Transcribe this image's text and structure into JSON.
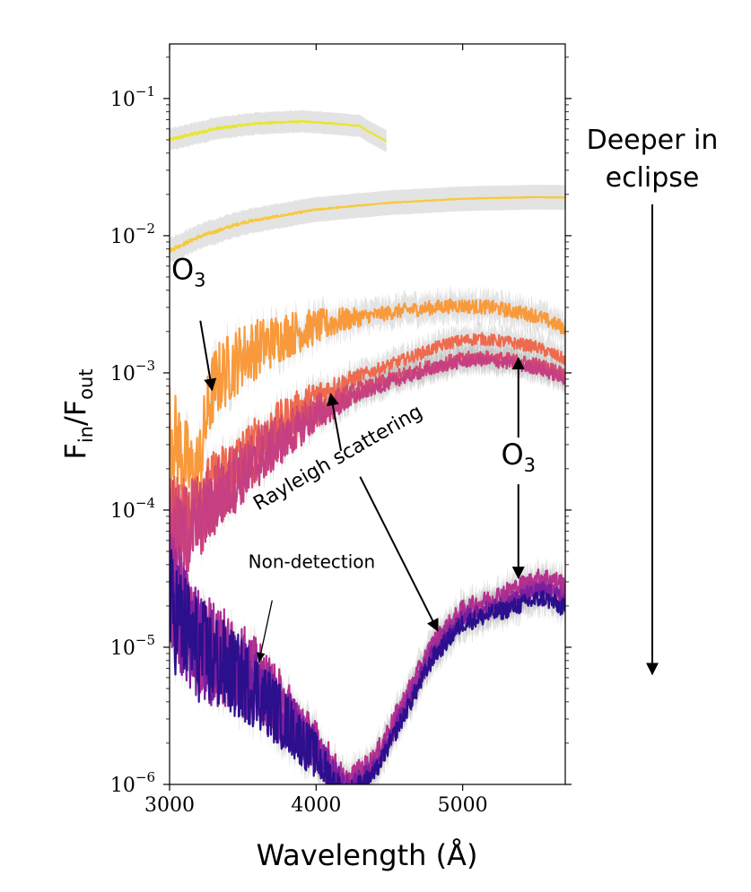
{
  "chart_data": {
    "type": "line",
    "title": "",
    "xlabel": "Wavelength (Å)",
    "ylabel": {
      "base": "F",
      "num_sub": "in",
      "sep": "/",
      "den": "F",
      "den_sub": "out"
    },
    "xlim": [
      3000,
      5700
    ],
    "ylim": [
      1e-06,
      0.25
    ],
    "yscale": "log",
    "grid": false,
    "legend": "none",
    "xticks": [
      {
        "value": 3000,
        "label": "3000"
      },
      {
        "value": 4000,
        "label": "4000"
      },
      {
        "value": 5000,
        "label": "5000"
      }
    ],
    "yticks": [
      {
        "value": 1e-06,
        "base": "10",
        "exp": "−6"
      },
      {
        "value": 1e-05,
        "base": "10",
        "exp": "−5"
      },
      {
        "value": 0.0001,
        "base": "10",
        "exp": "−4"
      },
      {
        "value": 0.001,
        "base": "10",
        "exp": "−3"
      },
      {
        "value": 0.01,
        "base": "10",
        "exp": "−2"
      },
      {
        "value": 0.1,
        "base": "10",
        "exp": "−1"
      }
    ],
    "series": [
      {
        "color": "#e8e62a",
        "noise": 0.012,
        "band": 0.08,
        "x": [
          3000,
          3300,
          3600,
          3900,
          4100,
          4300,
          4350,
          4480
        ],
        "y": [
          0.05,
          0.06,
          0.066,
          0.068,
          0.066,
          0.063,
          0.058,
          0.049
        ]
      },
      {
        "color": "#f7c93a",
        "noise": 0.015,
        "band": 0.09,
        "x": [
          3000,
          3200,
          3500,
          4000,
          4500,
          5000,
          5500,
          5700
        ],
        "y": [
          0.0078,
          0.0098,
          0.0125,
          0.0155,
          0.0174,
          0.0186,
          0.0191,
          0.019
        ]
      },
      {
        "color": "#f89a3c",
        "noise": 0.35,
        "band": 0.1,
        "x": [
          3000,
          3080,
          3150,
          3200,
          3250,
          3300,
          3350,
          3500,
          3800,
          4200,
          4600,
          4950,
          5200,
          5500,
          5700
        ],
        "y": [
          0.0004,
          0.00027,
          0.00018,
          0.0002,
          0.00045,
          0.0008,
          0.00095,
          0.00135,
          0.0019,
          0.00245,
          0.00285,
          0.0031,
          0.003,
          0.00262,
          0.0021
        ]
      },
      {
        "color": "#ee6a4f",
        "noise": 0.3,
        "band": 0.09,
        "x": [
          3000,
          3100,
          3200,
          3400,
          3600,
          3800,
          4000,
          4300,
          4600,
          4900,
          5100,
          5300,
          5500,
          5700
        ],
        "y": [
          0.0001,
          9e-05,
          0.00012,
          0.0002,
          0.00032,
          0.00048,
          0.00068,
          0.00095,
          0.00125,
          0.00165,
          0.00178,
          0.00168,
          0.00155,
          0.00125
        ]
      },
      {
        "color": "#d44a6e",
        "noise": 0.35,
        "band": 0.09,
        "x": [
          3000,
          3100,
          3200,
          3400,
          3600,
          3800,
          4000,
          4300,
          4600,
          4900,
          5100,
          5300,
          5500,
          5700
        ],
        "y": [
          8e-05,
          7e-05,
          9e-05,
          0.00016,
          0.00025,
          0.00036,
          0.00052,
          0.00075,
          0.00098,
          0.0012,
          0.0013,
          0.00125,
          0.00115,
          0.00098
        ]
      },
      {
        "color": "#c63f82",
        "noise": 0.3,
        "band": 0.08,
        "x": [
          3000,
          3100,
          3200,
          3400,
          3600,
          3800,
          4000,
          4300,
          4600,
          4900,
          5100,
          5300,
          5500,
          5700
        ],
        "y": [
          7e-05,
          6e-05,
          8e-05,
          0.00014,
          0.00022,
          0.00033,
          0.00048,
          0.0007,
          0.00092,
          0.00115,
          0.00125,
          0.00118,
          0.00108,
          0.0009
        ]
      },
      {
        "color": "#b5308f",
        "noise": 0.45,
        "band": 0.1,
        "x": [
          3000,
          3200,
          3400,
          3600,
          3800,
          4000,
          4100,
          4200,
          4400,
          4600,
          4800,
          5000,
          5200,
          5400,
          5550,
          5700
        ],
        "y": [
          3e-05,
          1.2e-05,
          8.5e-06,
          6e-06,
          3.5e-06,
          2e-06,
          1.4e-06,
          1e-06,
          1.6e-06,
          4.2e-06,
          1.1e-05,
          1.9e-05,
          2.3e-05,
          2.85e-05,
          3.3e-05,
          2.9e-05
        ]
      },
      {
        "color": "#a32d96",
        "noise": 0.45,
        "band": 0.1,
        "x": [
          3000,
          3200,
          3400,
          3600,
          3800,
          4000,
          4100,
          4200,
          4400,
          4600,
          4800,
          5000,
          5200,
          5400,
          5550,
          5700
        ],
        "y": [
          2.5e-05,
          1.1e-05,
          7.8e-06,
          5.5e-06,
          3.2e-06,
          1.8e-06,
          1.2e-06,
          9e-07,
          1.4e-06,
          3.8e-06,
          1e-05,
          1.7e-05,
          2e-05,
          2.45e-05,
          2.8e-05,
          2.45e-05
        ]
      },
      {
        "color": "#7a1ea0",
        "noise": 0.45,
        "band": 0.1,
        "x": [
          3000,
          3200,
          3400,
          3600,
          3800,
          4000,
          4100,
          4200,
          4400,
          4600,
          4800,
          5000,
          5200,
          5400,
          5550,
          5700
        ],
        "y": [
          2.2e-05,
          1e-05,
          7.2e-06,
          5e-06,
          3e-06,
          1.7e-06,
          1.2e-06,
          9e-07,
          1.3e-06,
          3.5e-06,
          9.2e-06,
          1.6e-05,
          1.9e-05,
          2.3e-05,
          2.6e-05,
          2.2e-05
        ]
      },
      {
        "color": "#2c0f8c",
        "noise": 0.45,
        "band": 0.1,
        "x": [
          3000,
          3200,
          3400,
          3600,
          3800,
          4000,
          4100,
          4200,
          4400,
          4600,
          4800,
          5000,
          5200,
          5400,
          5550,
          5700
        ],
        "y": [
          2e-05,
          9.5e-06,
          6.8e-06,
          4.8e-06,
          2.8e-06,
          1.6e-06,
          1.1e-06,
          8e-07,
          1.2e-06,
          3.2e-06,
          8.5e-06,
          1.5e-05,
          1.75e-05,
          2.05e-05,
          2.3e-05,
          1.9e-05
        ]
      }
    ],
    "annotations": [
      {
        "id": "o3-left",
        "base": "O",
        "sub": "3",
        "x": 3130,
        "y": 0.0048,
        "arrow_from": [
          3210,
          0.0024
        ],
        "arrow_to": [
          3290,
          0.00075
        ]
      },
      {
        "id": "o3-right",
        "base": "O",
        "sub": "3",
        "x": 5380,
        "y": 0.000215
      },
      {
        "id": "rayleigh",
        "text": "Rayleigh scattering",
        "x": 4170,
        "y": 0.00022,
        "rotate": -30,
        "arrow_to_a": [
          4100,
          0.0007
        ],
        "arrow_to_b": [
          4830,
          1.32e-05
        ]
      },
      {
        "id": "non-detection",
        "text": "Non-detection",
        "x": 3970,
        "y": 3.8e-05,
        "arrow_from": [
          3700,
          2.2e-05
        ],
        "arrow_to": [
          3610,
          7.8e-06
        ]
      }
    ],
    "side_note": {
      "lines": [
        "Deeper in",
        "eclipse"
      ]
    }
  }
}
